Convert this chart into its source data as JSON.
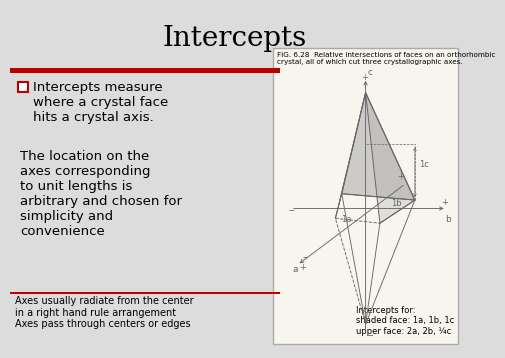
{
  "title": "Intercepts",
  "title_fontsize": 20,
  "title_fontfamily": "serif",
  "bg_color": "#dcdcdc",
  "bullet_text": "Intercepts measure\nwhere a crystal face\nhits a crystal axis.",
  "bullet_fontsize": 9.5,
  "body_text": "The location on the\naxes corresponding\nto unit lengths is\narbitrary and chosen for\nsimplicity and\nconvenience",
  "body_fontsize": 9.5,
  "footer_text": "Axes usually radiate from the center\nin a right hand rule arrangement\nAxes pass through centers or edges",
  "footer_fontsize": 7.0,
  "red_bar_color": "#bb0000",
  "bullet_square_color": "#bb0000",
  "bullet_square_face": "white",
  "fig_caption": "FIG. 6.28  Relative intersections of faces on an orthorhombic\ncrystal, all of which cut three crystallographic axes.",
  "fig_caption_fontsize": 5.2,
  "intercept_text": "Intercepts for:\nshaded face: 1a, 1b, 1c\nupper face: 2a, 2b, ¼c",
  "intercept_fontsize": 6.0,
  "footer_line_color": "#bb0000",
  "image_box_color": "#f8f5ee",
  "image_box_border": "#aaaaaa",
  "crystal_color": "#666666",
  "shade_color": "#aaaaaa"
}
